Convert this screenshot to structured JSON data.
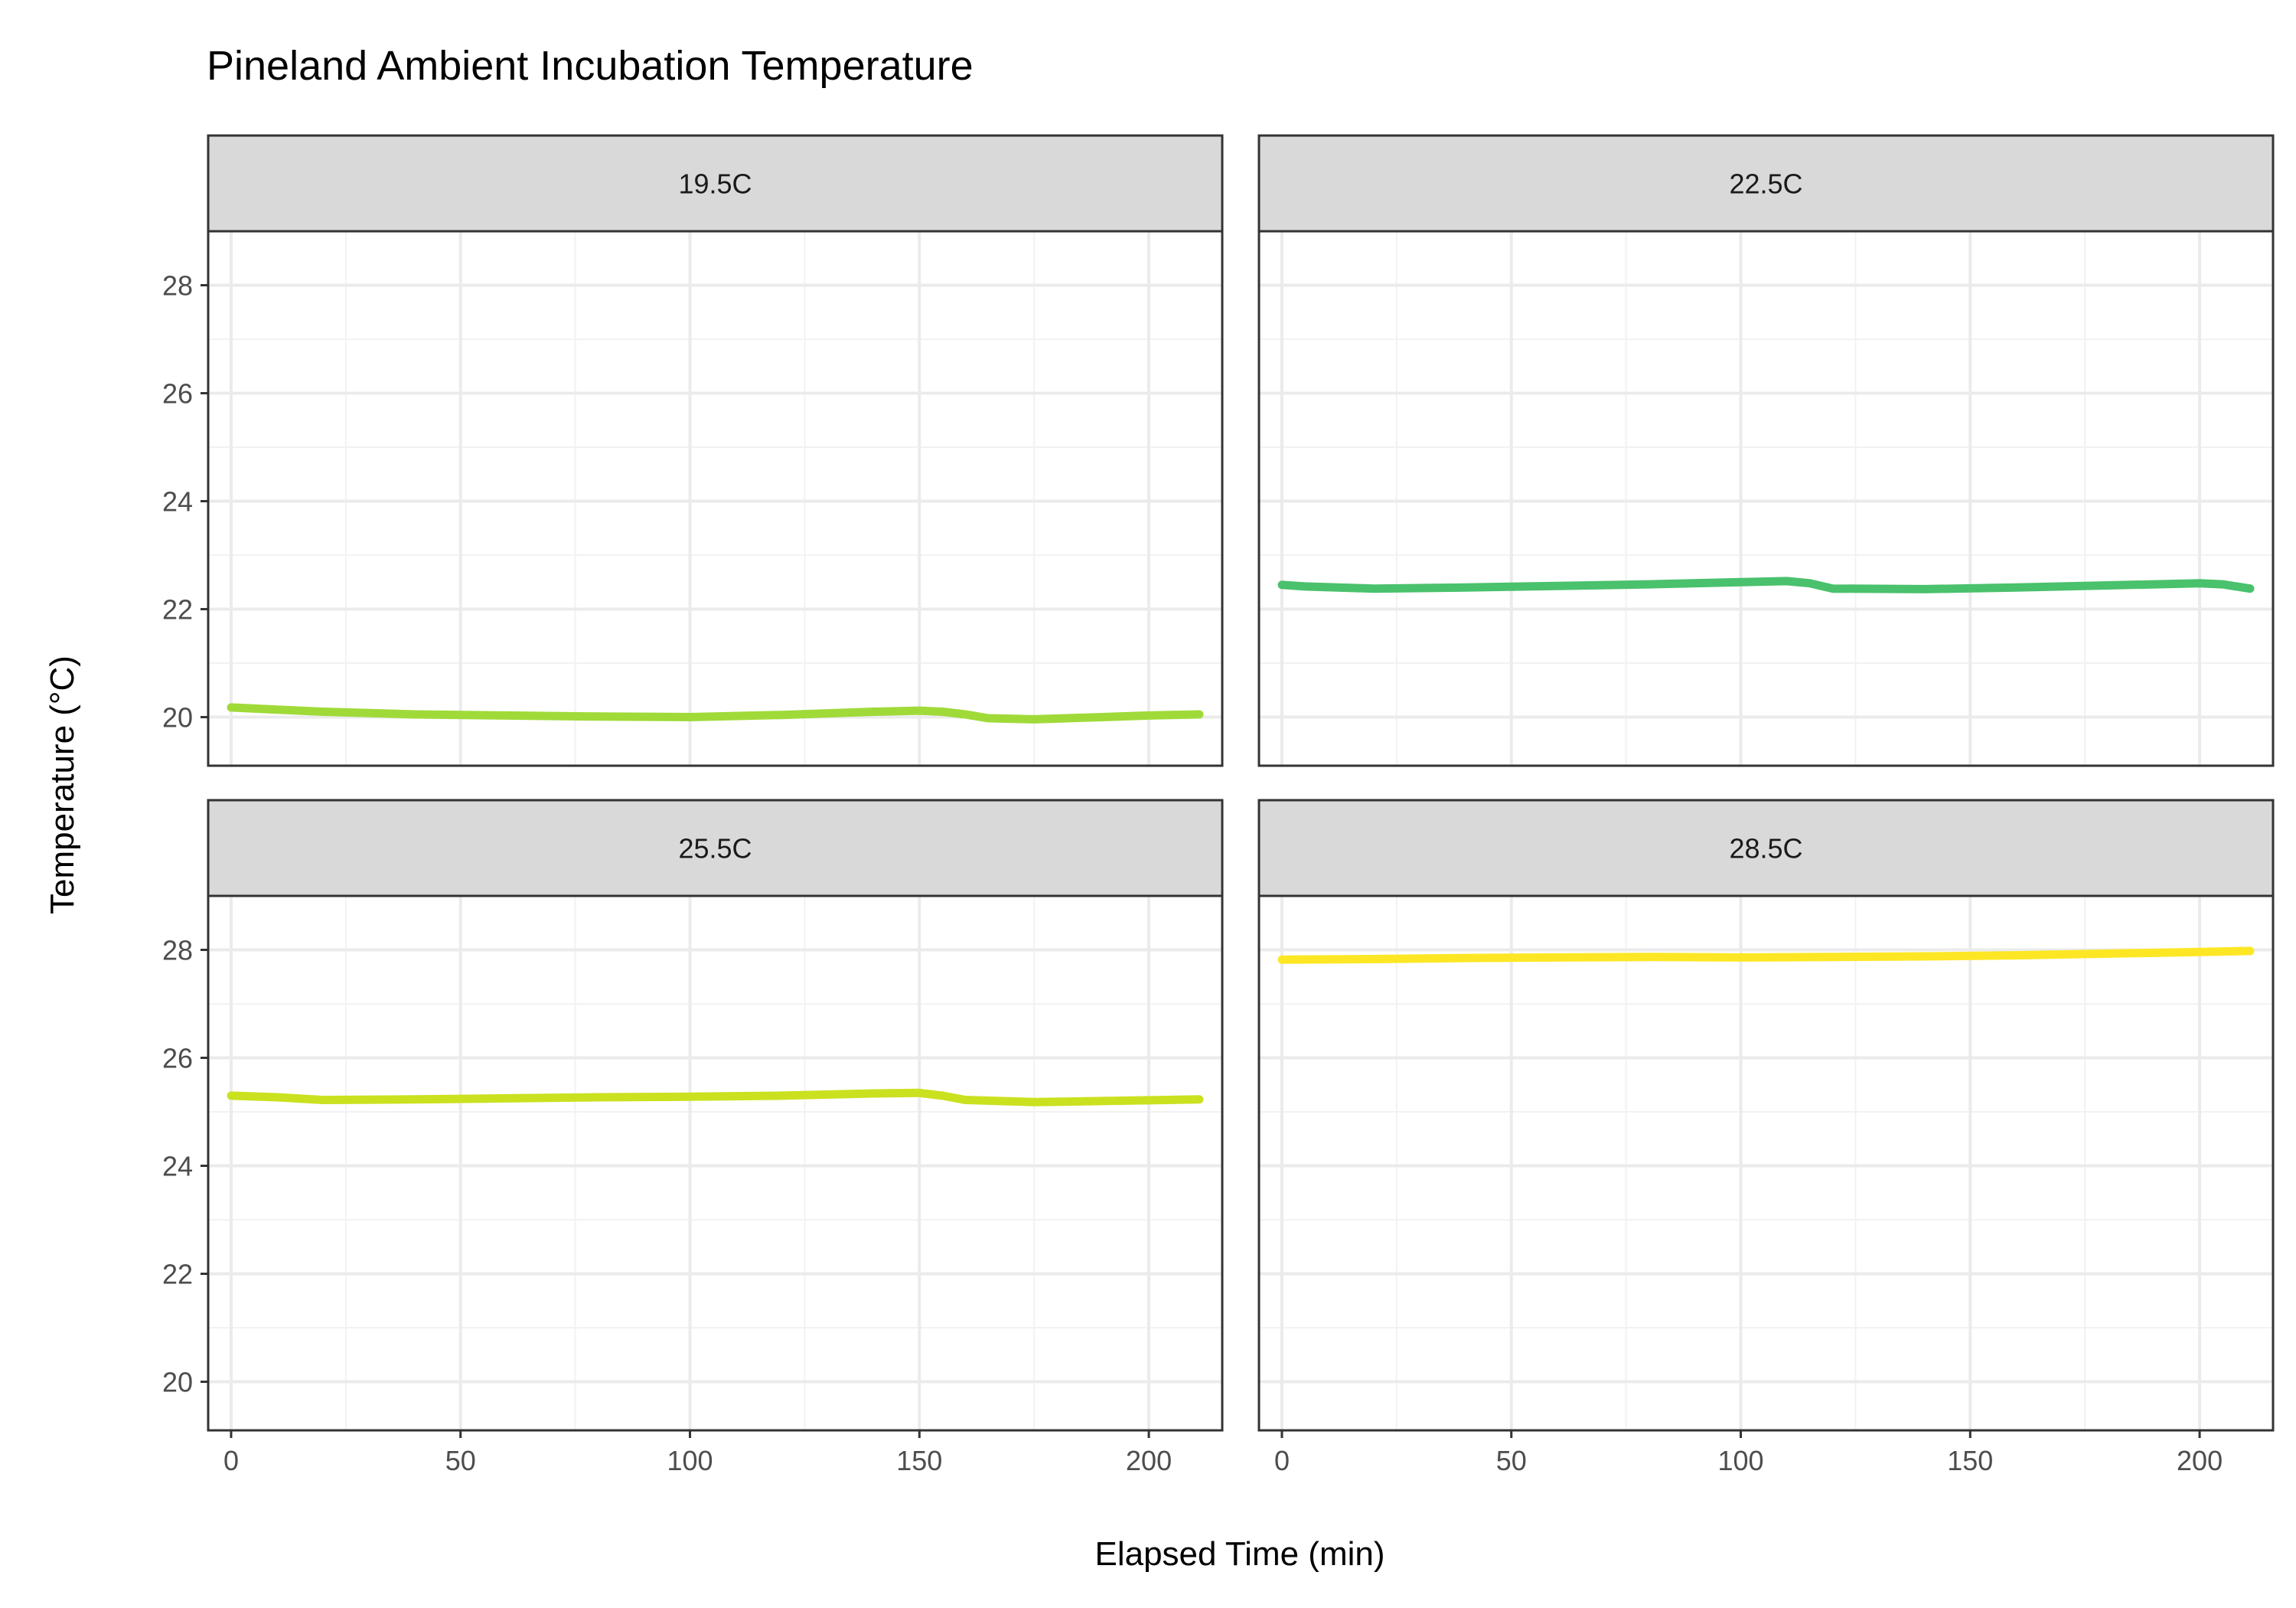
{
  "chart_data": {
    "type": "line",
    "title": "Pineland Ambient Incubation Temperature",
    "xlabel": "Elapsed Time (min)",
    "ylabel": "Temperature (°C)",
    "xlim": [
      -5,
      216
    ],
    "ylim": [
      19.1,
      29.0
    ],
    "x_ticks": [
      0,
      50,
      100,
      150,
      200
    ],
    "y_ticks": [
      20,
      22,
      24,
      26,
      28
    ],
    "grid": true,
    "legend": "none",
    "facets": [
      {
        "label": "19.5C",
        "color": "#a0da39",
        "x": [
          0,
          10,
          20,
          40,
          60,
          80,
          100,
          120,
          140,
          150,
          155,
          160,
          165,
          175,
          190,
          200,
          211
        ],
        "y": [
          20.18,
          20.14,
          20.1,
          20.05,
          20.03,
          20.01,
          20.0,
          20.04,
          20.1,
          20.12,
          20.1,
          20.05,
          19.98,
          19.96,
          20.0,
          20.03,
          20.05
        ]
      },
      {
        "label": "22.5C",
        "color": "#4ac16d",
        "x": [
          0,
          5,
          20,
          40,
          60,
          80,
          100,
          110,
          115,
          120,
          140,
          160,
          180,
          200,
          205,
          211
        ],
        "y": [
          22.45,
          22.42,
          22.38,
          22.4,
          22.43,
          22.46,
          22.5,
          22.52,
          22.48,
          22.38,
          22.37,
          22.4,
          22.44,
          22.48,
          22.46,
          22.38
        ]
      },
      {
        "label": "25.5C",
        "color": "#cae11f",
        "x": [
          0,
          10,
          20,
          40,
          60,
          80,
          100,
          120,
          140,
          150,
          155,
          160,
          175,
          190,
          211
        ],
        "y": [
          25.3,
          25.27,
          25.22,
          25.23,
          25.25,
          25.27,
          25.28,
          25.3,
          25.34,
          25.35,
          25.3,
          25.22,
          25.18,
          25.2,
          25.23
        ]
      },
      {
        "label": "28.5C",
        "color": "#fde725",
        "x": [
          0,
          20,
          40,
          60,
          80,
          100,
          120,
          140,
          160,
          180,
          200,
          211
        ],
        "y": [
          27.82,
          27.83,
          27.85,
          27.86,
          27.87,
          27.86,
          27.87,
          27.88,
          27.9,
          27.93,
          27.96,
          27.98
        ]
      }
    ]
  }
}
